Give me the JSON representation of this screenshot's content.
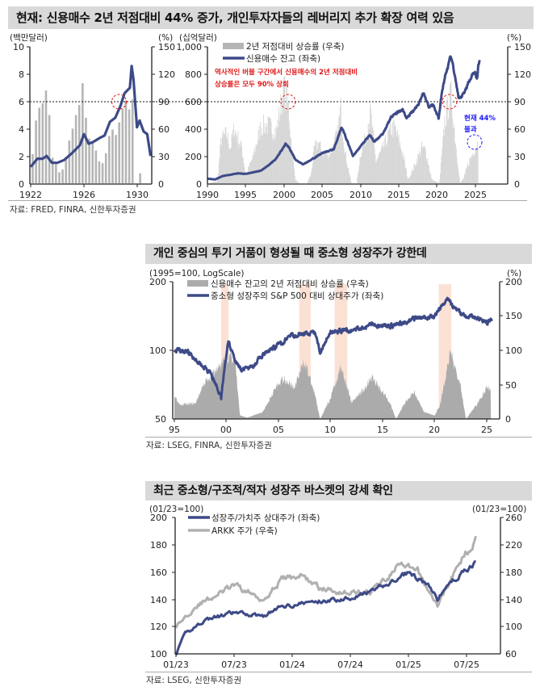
{
  "panel1": {
    "title": "현재: 신용매수 2년 저점대비 44% 증가, 개인투자자들의 레버리지 추가 확장 여력 있음",
    "source": "자료: FRED, FINRA, 신한투자증권"
  },
  "panel2": {
    "title": "개인 중심의 투기 거품이 형성될 때 중소형 성장주가 강한데",
    "source": "자료: LSEG, FINRA, 신한투자증권"
  },
  "panel3": {
    "title": "최근 중소형/구조적/적자 성장주 바스켓의 강세 확인",
    "source": "자료: LSEG, 신한투자증권"
  },
  "colors": {
    "line": "#3d4a87",
    "bars": "#b5b5b5",
    "bars_light": "#d6d6d6",
    "area": "#ababab",
    "shade": "#fbe1d4",
    "arkk": "#b0b0b0",
    "annotation_red": "#e01818",
    "annotation_blue": "#1a1aff"
  },
  "chart_data": [
    {
      "type": "bar+line",
      "left_unit": "(백만달러)",
      "right_unit": "(%)",
      "ylim_left": [
        0,
        10
      ],
      "ylim_right": [
        0,
        150
      ],
      "yticks_left": [
        "10",
        "8",
        "6",
        "4",
        "2",
        "0"
      ],
      "yticks_right": [
        "150",
        "120",
        "90",
        "60",
        "30",
        "0"
      ],
      "xticks": [
        "1922",
        "1926",
        "1930"
      ],
      "reference_line": {
        "left": 6,
        "right": 90,
        "style": "dotted"
      },
      "bars_right": [
        [
          1922.15,
          32
        ],
        [
          1922.4,
          69
        ],
        [
          1922.65,
          83
        ],
        [
          1922.9,
          88
        ],
        [
          1923.15,
          102
        ],
        [
          1923.4,
          75
        ],
        [
          1923.65,
          28
        ],
        [
          1923.9,
          21
        ],
        [
          1924.15,
          12
        ],
        [
          1924.4,
          15
        ],
        [
          1924.65,
          27
        ],
        [
          1924.9,
          47
        ],
        [
          1925.15,
          60
        ],
        [
          1925.4,
          75
        ],
        [
          1925.65,
          86
        ],
        [
          1925.9,
          110
        ],
        [
          1926.15,
          72
        ],
        [
          1926.4,
          49
        ],
        [
          1926.65,
          45
        ],
        [
          1926.9,
          36
        ],
        [
          1927.15,
          24
        ],
        [
          1927.4,
          22
        ],
        [
          1927.65,
          33
        ],
        [
          1927.9,
          52
        ],
        [
          1928.15,
          59
        ],
        [
          1928.4,
          53
        ],
        [
          1928.65,
          67
        ],
        [
          1928.9,
          82
        ],
        [
          1929.15,
          91
        ],
        [
          1929.4,
          81
        ],
        [
          1929.65,
          92
        ],
        [
          1930.22,
          11
        ]
      ],
      "line_left": [
        [
          1922.0,
          1.2
        ],
        [
          1922.5,
          1.8
        ],
        [
          1922.9,
          1.8
        ],
        [
          1923.2,
          2.0
        ],
        [
          1923.6,
          1.5
        ],
        [
          1924.0,
          1.5
        ],
        [
          1924.5,
          1.7
        ],
        [
          1925.1,
          2.2
        ],
        [
          1925.7,
          2.8
        ],
        [
          1926.0,
          3.6
        ],
        [
          1926.35,
          2.9
        ],
        [
          1926.65,
          3.0
        ],
        [
          1927.15,
          3.3
        ],
        [
          1927.55,
          3.5
        ],
        [
          1927.95,
          4.5
        ],
        [
          1928.35,
          4.8
        ],
        [
          1928.75,
          5.7
        ],
        [
          1929.05,
          6.6
        ],
        [
          1929.45,
          7.0
        ],
        [
          1929.58,
          8.6
        ],
        [
          1929.72,
          7.6
        ],
        [
          1929.98,
          4.1
        ],
        [
          1930.18,
          4.6
        ],
        [
          1930.48,
          3.8
        ],
        [
          1930.75,
          3.6
        ],
        [
          1931.0,
          2.0
        ]
      ],
      "highlight": {
        "x": 1929.0,
        "y_left": 6
      }
    },
    {
      "type": "bar+line",
      "left_unit": "(십억달러)",
      "right_unit": "(%)",
      "ylim_left": [
        0,
        1000
      ],
      "ylim_right": [
        0,
        150
      ],
      "yticks_left": [
        "1,000",
        "800",
        "600",
        "400",
        "200",
        "0"
      ],
      "yticks_right": [
        "150",
        "120",
        "90",
        "60",
        "30",
        "0"
      ],
      "xticks": [
        "1990",
        "1995",
        "2000",
        "2005",
        "2010",
        "2015",
        "2020",
        "2025"
      ],
      "legend": [
        {
          "name": "2년 저점대비 상승률 (우축)",
          "kind": "bar"
        },
        {
          "name": "신용매수 잔고 (좌축)",
          "kind": "line"
        }
      ],
      "annotation_red": [
        "역사적인 버블 구간에서 신용매수의 2년 저점대비",
        "상승률은 모두 90% 상회"
      ],
      "annotation_blue": [
        "현재 44%",
        "불과"
      ],
      "reference_line": {
        "left": 600,
        "right": 90,
        "style": "dotted"
      },
      "bars_right": [
        [
          1990,
          0
        ],
        [
          1991.3,
          2
        ],
        [
          1991.8,
          49
        ],
        [
          1992.5,
          54
        ],
        [
          1993,
          39
        ],
        [
          1993.5,
          61
        ],
        [
          1994,
          49
        ],
        [
          1994.5,
          39
        ],
        [
          1995,
          9
        ],
        [
          1996,
          30
        ],
        [
          1997,
          63
        ],
        [
          1998,
          63
        ],
        [
          1999,
          57
        ],
        [
          2000,
          104
        ],
        [
          2000.6,
          83
        ],
        [
          2001,
          39
        ],
        [
          2001.5,
          4
        ],
        [
          2002,
          0
        ],
        [
          2003,
          0
        ],
        [
          2003.5,
          9
        ],
        [
          2004,
          39
        ],
        [
          2004.5,
          45
        ],
        [
          2005,
          33
        ],
        [
          2006,
          33
        ],
        [
          2007,
          54
        ],
        [
          2007.4,
          82
        ],
        [
          2008,
          33
        ],
        [
          2008.8,
          0
        ],
        [
          2009.5,
          0
        ],
        [
          2010,
          33
        ],
        [
          2010.5,
          45
        ],
        [
          2011,
          68
        ],
        [
          2011.3,
          77
        ],
        [
          2012,
          24
        ],
        [
          2013,
          39
        ],
        [
          2014,
          60
        ],
        [
          2014.5,
          60
        ],
        [
          2015.5,
          33
        ],
        [
          2016.2,
          4
        ],
        [
          2017,
          18
        ],
        [
          2018,
          39
        ],
        [
          2018.5,
          36
        ],
        [
          2019.3,
          4
        ],
        [
          2020.3,
          0
        ],
        [
          2021,
          68
        ],
        [
          2021.8,
          98
        ],
        [
          2022.5,
          39
        ],
        [
          2023,
          0
        ],
        [
          2023.5,
          6
        ],
        [
          2024,
          20
        ],
        [
          2024.5,
          30
        ],
        [
          2025.2,
          44
        ]
      ],
      "line_left": [
        [
          1990,
          34
        ],
        [
          1991,
          28
        ],
        [
          1992,
          53
        ],
        [
          1994,
          73
        ],
        [
          1995,
          69
        ],
        [
          1997,
          93
        ],
        [
          1998,
          133
        ],
        [
          1999,
          182
        ],
        [
          2000.2,
          291
        ],
        [
          2000.7,
          261
        ],
        [
          2001.5,
          172
        ],
        [
          2002.5,
          139
        ],
        [
          2003.5,
          172
        ],
        [
          2005,
          222
        ],
        [
          2006.5,
          251
        ],
        [
          2007.5,
          410
        ],
        [
          2008,
          350
        ],
        [
          2009,
          202
        ],
        [
          2010,
          271
        ],
        [
          2011.2,
          356
        ],
        [
          2011.8,
          305
        ],
        [
          2013,
          370
        ],
        [
          2014,
          489
        ],
        [
          2015.5,
          548
        ],
        [
          2016,
          479
        ],
        [
          2017.5,
          578
        ],
        [
          2018.2,
          667
        ],
        [
          2018.9,
          568
        ],
        [
          2019.5,
          578
        ],
        [
          2020.2,
          479
        ],
        [
          2020.6,
          657
        ],
        [
          2021.0,
          780
        ],
        [
          2021.8,
          935
        ],
        [
          2022.3,
          800
        ],
        [
          2022.8,
          620
        ],
        [
          2023.2,
          640
        ],
        [
          2023.8,
          700
        ],
        [
          2024.5,
          800
        ],
        [
          2025.0,
          820
        ],
        [
          2025.2,
          760
        ],
        [
          2025.4,
          880
        ],
        [
          2025.6,
          920
        ]
      ],
      "highlights": [
        {
          "x": 2000.5,
          "y_left": 600,
          "color": "red"
        },
        {
          "x": 2021.6,
          "y_left": 600,
          "color": "red"
        },
        {
          "x": 2025.0,
          "y_right": 44,
          "color": "blue"
        }
      ]
    },
    {
      "type": "area+line",
      "left_unit": "(1995=100,  LogScale)",
      "right_unit": "(%)",
      "left_scale": "log",
      "ylim_left": [
        50,
        200
      ],
      "ylim_right": [
        0,
        200
      ],
      "yticks_left": [
        "200",
        "100",
        "50"
      ],
      "yticks_right": [
        "200",
        "150",
        "100",
        "50",
        "0"
      ],
      "xticks": [
        "95",
        "00",
        "05",
        "10",
        "15",
        "20",
        "25"
      ],
      "legend": [
        {
          "name": "신용매수 잔고의 2년 저점대비 상승률 (우축)",
          "kind": "area"
        },
        {
          "name": "중소형 성장주의 S&P 500 대비 상대주가 (좌축)",
          "kind": "line"
        }
      ],
      "shaded_periods": [
        [
          1999.5,
          2000.2
        ],
        [
          2007.0,
          2008.1
        ],
        [
          2010.4,
          2011.6
        ],
        [
          2020.4,
          2021.6
        ]
      ],
      "area_right": [
        [
          1995,
          35
        ],
        [
          1995.5,
          22
        ],
        [
          1997,
          22
        ],
        [
          1998,
          55
        ],
        [
          1999,
          70
        ],
        [
          2000,
          90
        ],
        [
          2000.8,
          90
        ],
        [
          2001.3,
          5
        ],
        [
          2002,
          2
        ],
        [
          2003.5,
          10
        ],
        [
          2004.5,
          40
        ],
        [
          2005.5,
          60
        ],
        [
          2006.5,
          45
        ],
        [
          2007.5,
          85
        ],
        [
          2008.5,
          35
        ],
        [
          2009,
          0
        ],
        [
          2010,
          30
        ],
        [
          2011,
          78
        ],
        [
          2012,
          25
        ],
        [
          2013,
          40
        ],
        [
          2014,
          60
        ],
        [
          2015.5,
          30
        ],
        [
          2016.3,
          0
        ],
        [
          2017,
          20
        ],
        [
          2018,
          40
        ],
        [
          2019,
          10
        ],
        [
          2020,
          5
        ],
        [
          2020.5,
          20
        ],
        [
          2021.5,
          95
        ],
        [
          2022.5,
          50
        ],
        [
          2023,
          0
        ],
        [
          2024,
          20
        ],
        [
          2025,
          45
        ],
        [
          2025.4,
          45
        ]
      ],
      "line_left": [
        [
          1995,
          100
        ],
        [
          1996,
          100
        ],
        [
          1997.5,
          88
        ],
        [
          1998.5,
          78
        ],
        [
          1999,
          70
        ],
        [
          1999.5,
          62
        ],
        [
          2000.0,
          95
        ],
        [
          2000.2,
          110
        ],
        [
          2000.8,
          90
        ],
        [
          2001.5,
          82
        ],
        [
          2002.5,
          85
        ],
        [
          2003.5,
          95
        ],
        [
          2005,
          105
        ],
        [
          2006,
          115
        ],
        [
          2007.5,
          120
        ],
        [
          2008.5,
          118
        ],
        [
          2009,
          98
        ],
        [
          2010,
          122
        ],
        [
          2012,
          122
        ],
        [
          2014,
          130
        ],
        [
          2016,
          128
        ],
        [
          2018,
          138
        ],
        [
          2020,
          140
        ],
        [
          2021.2,
          170
        ],
        [
          2021.8,
          155
        ],
        [
          2022.5,
          145
        ],
        [
          2023,
          142
        ],
        [
          2024,
          140
        ],
        [
          2025,
          133
        ],
        [
          2025.5,
          137
        ]
      ]
    },
    {
      "type": "line",
      "left_unit": "(01/23=100)",
      "right_unit": "(01/23=100)",
      "ylim_left": [
        100,
        200
      ],
      "ylim_right": [
        60,
        260
      ],
      "yticks_left": [
        "200",
        "180",
        "160",
        "140",
        "120",
        "100"
      ],
      "yticks_right": [
        "260",
        "220",
        "180",
        "140",
        "100",
        "60"
      ],
      "xticks": [
        "01/23",
        "07/23",
        "01/24",
        "07/24",
        "01/25",
        "07/25"
      ],
      "series": [
        {
          "name": "성장주/가치주 상대주가 (좌축)",
          "axis": "left",
          "values": [
            [
              "2023-01",
              100
            ],
            [
              "2023-02",
              115
            ],
            [
              "2023-04",
              125
            ],
            [
              "2023-07",
              130
            ],
            [
              "2023-10",
              128
            ],
            [
              "2023-12",
              135
            ],
            [
              "2024-03",
              138
            ],
            [
              "2024-06",
              140
            ],
            [
              "2024-09",
              145
            ],
            [
              "2024-12",
              155
            ],
            [
              "2025-01",
              160
            ],
            [
              "2025-03",
              150
            ],
            [
              "2025-04",
              140
            ],
            [
              "2025-05",
              150
            ],
            [
              "2025-07",
              162
            ],
            [
              "2025-08",
              167
            ]
          ]
        },
        {
          "name": "ARKK 주가 (우축)",
          "axis": "right",
          "values": [
            [
              "2023-01",
              100
            ],
            [
              "2023-03",
              130
            ],
            [
              "2023-07",
              160
            ],
            [
              "2023-10",
              140
            ],
            [
              "2023-12",
              170
            ],
            [
              "2024-02",
              175
            ],
            [
              "2024-04",
              155
            ],
            [
              "2024-07",
              150
            ],
            [
              "2024-09",
              150
            ],
            [
              "2024-11",
              175
            ],
            [
              "2024-12",
              190
            ],
            [
              "2025-02",
              180
            ],
            [
              "2025-04",
              130
            ],
            [
              "2025-05",
              160
            ],
            [
              "2025-07",
              210
            ],
            [
              "2025-08",
              228
            ]
          ]
        }
      ]
    }
  ]
}
